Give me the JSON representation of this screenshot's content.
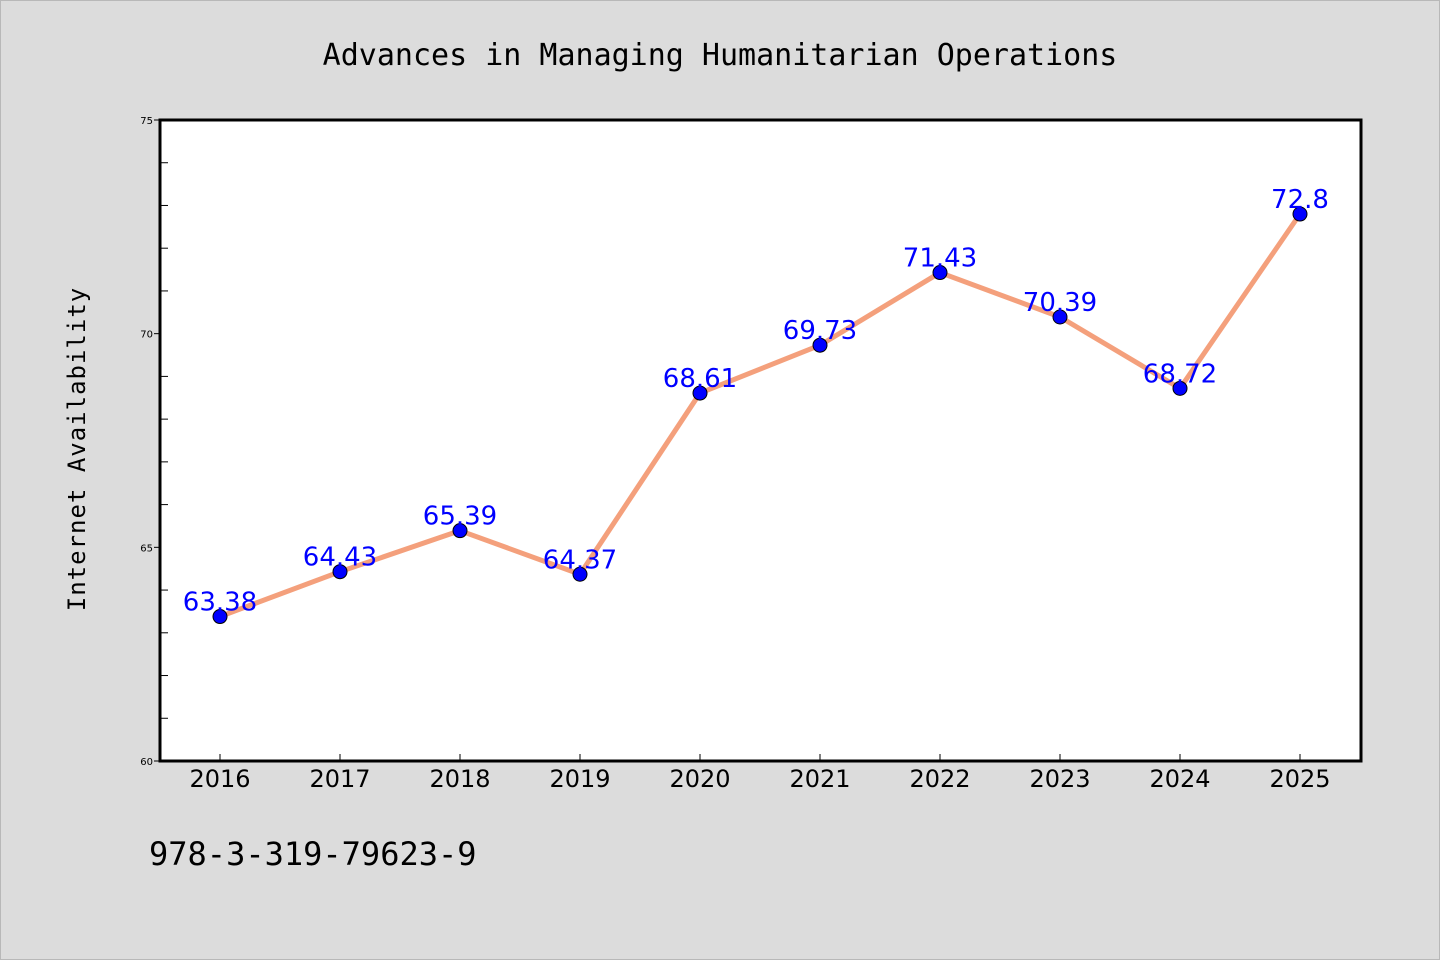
{
  "chart_data": {
    "type": "line",
    "title": "Advances in Managing Humanitarian Operations",
    "xlabel": "",
    "ylabel": "Internet Availability",
    "categories": [
      "2016",
      "2017",
      "2018",
      "2019",
      "2020",
      "2021",
      "2022",
      "2023",
      "2024",
      "2025"
    ],
    "series": [
      {
        "values": [
          63.38,
          64.43,
          65.39,
          64.37,
          68.61,
          69.73,
          71.43,
          70.39,
          68.72,
          72.8
        ],
        "data_labels": [
          "63.38",
          "64.43",
          "65.39",
          "64.37",
          "68.61",
          "69.73",
          "71.43",
          "70.39",
          "68.72",
          "72.8"
        ],
        "line_color": "#f4a07c",
        "marker_color": "#0000ff"
      }
    ],
    "ylim": [
      60,
      75
    ],
    "yticks": [
      "60",
      "65",
      "70",
      "75"
    ],
    "grid": false,
    "background": "#ffffff",
    "page_background": "#dcdcdc"
  },
  "footer": {
    "text": "978-3-319-79623-9"
  }
}
